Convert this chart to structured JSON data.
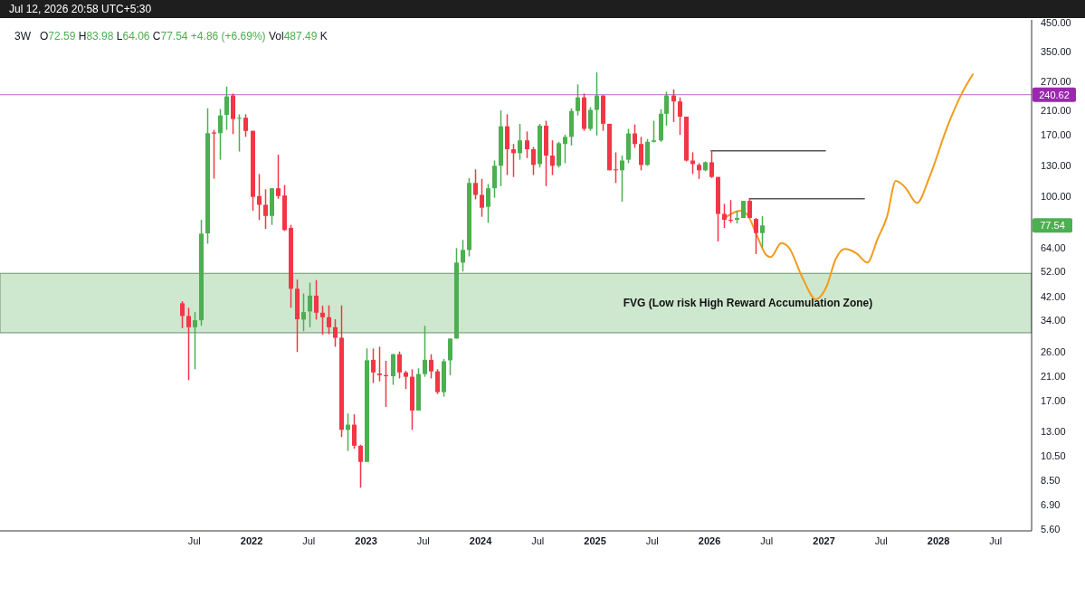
{
  "chart_data": {
    "type": "candlestick",
    "title": "3W",
    "subtitle": "O72.59 H83.98 L64.06 C77.54 +4.86 (+6.69%) Vol487.49 K",
    "log": "y",
    "xlim": [
      2019.802,
      2028.814
    ],
    "ylim": [
      5.5,
      460
    ],
    "xticks": [
      {
        "value": 2021.5,
        "label": "Jul"
      },
      2022,
      {
        "value": 2022.5,
        "label": "Jul"
      },
      2023,
      {
        "value": 2023.5,
        "label": "Jul"
      },
      2024,
      {
        "value": 2024.5,
        "label": "Jul"
      },
      2025,
      {
        "value": 2025.5,
        "label": "Jul"
      },
      2026,
      {
        "value": 2026.5,
        "label": "Jul"
      },
      2027,
      {
        "value": 2027.5,
        "label": "Jul"
      },
      2028,
      {
        "value": 2028.5,
        "label": "Jul"
      }
    ],
    "yticks": [
      {
        "value": 5.6,
        "label": "5.60"
      },
      {
        "value": 6.9,
        "label": "6.90"
      },
      {
        "value": 8.5,
        "label": "8.50"
      },
      {
        "value": 10.5,
        "label": "10.50"
      },
      {
        "value": 13,
        "label": "13.00"
      },
      {
        "value": 17,
        "label": "17.00"
      },
      {
        "value": 21,
        "label": "21.00"
      },
      {
        "value": 26,
        "label": "26.00"
      },
      {
        "value": 34,
        "label": "34.00"
      },
      {
        "value": 42,
        "label": "42.00"
      },
      {
        "value": 52,
        "label": "52.00"
      },
      {
        "value": 64,
        "label": "64.00"
      },
      {
        "value": 100,
        "label": "100.00"
      },
      {
        "value": 130,
        "label": "130.00"
      },
      {
        "value": 170,
        "label": "170.00"
      },
      {
        "value": 210,
        "label": "210.00"
      },
      {
        "value": 270,
        "label": "270.00"
      },
      {
        "value": 350,
        "label": "350.00"
      },
      {
        "value": 450,
        "label": "450.00"
      }
    ],
    "x": [
      2021.391,
      2021.447,
      2021.502,
      2021.558,
      2021.614,
      2021.67,
      2021.725,
      2021.781,
      2021.837,
      2021.892,
      2021.948,
      2022.004,
      2022.059,
      2022.115,
      2022.171,
      2022.227,
      2022.282,
      2022.338,
      2022.394,
      2022.449,
      2022.505,
      2022.561,
      2022.616,
      2022.672,
      2022.728,
      2022.784,
      2022.839,
      2022.895,
      2022.951,
      2023.006,
      2023.062,
      2023.118,
      2023.173,
      2023.229,
      2023.285,
      2023.341,
      2023.396,
      2023.452,
      2023.508,
      2023.563,
      2023.619,
      2023.675,
      2023.73,
      2023.786,
      2023.842,
      2023.898,
      2023.953,
      2024.009,
      2024.065,
      2024.12,
      2024.176,
      2024.232,
      2024.287,
      2024.343,
      2024.399,
      2024.455,
      2024.51,
      2024.566,
      2024.622,
      2024.677,
      2024.733,
      2024.789,
      2024.844,
      2024.9,
      2024.956,
      2025.012,
      2025.067,
      2025.123,
      2025.179,
      2025.234,
      2025.29,
      2025.346,
      2025.401,
      2025.457,
      2025.513,
      2025.569,
      2025.624,
      2025.68,
      2025.736,
      2025.791,
      2025.847,
      2025.903,
      2025.958,
      2026.014,
      2026.07,
      2026.126,
      2026.181,
      2026.237,
      2026.293,
      2026.348,
      2026.404,
      2026.46
    ],
    "ohlc": [
      [
        39.5,
        40.2,
        31.8,
        35.4
      ],
      [
        35.4,
        38.0,
        20.3,
        32.1
      ],
      [
        32.1,
        36.6,
        22.3,
        34.1
      ],
      [
        34.1,
        81.4,
        32.5,
        72.2
      ],
      [
        72.4,
        214,
        66.2,
        172.4
      ],
      [
        173.5,
        177.5,
        116.3,
        171.8
      ],
      [
        172.4,
        212.5,
        137,
        201
      ],
      [
        202,
        258,
        177.5,
        237
      ],
      [
        239,
        243,
        171,
        195
      ],
      [
        196,
        203,
        147,
        197
      ],
      [
        197,
        203,
        167,
        175.8
      ],
      [
        176,
        176,
        88,
        99.3
      ],
      [
        100,
        121,
        81.2,
        92.7
      ],
      [
        92.7,
        106,
        75.3,
        84.2
      ],
      [
        84.2,
        107,
        77.9,
        107
      ],
      [
        107,
        143,
        97.7,
        100
      ],
      [
        100.5,
        110,
        73.9,
        74.5
      ],
      [
        75.9,
        77.9,
        38.0,
        44.8
      ],
      [
        44.8,
        48.5,
        25.9,
        34.4
      ],
      [
        34.3,
        43.0,
        31.0,
        36.6
      ],
      [
        36.8,
        47.2,
        32.1,
        42.2
      ],
      [
        42.2,
        48.3,
        34.3,
        36.4
      ],
      [
        36.4,
        38.7,
        30.1,
        35.0
      ],
      [
        35.0,
        38.8,
        30.2,
        32.1
      ],
      [
        32.1,
        34.4,
        27.1,
        29.3
      ],
      [
        29.3,
        38.8,
        12.4,
        13.2
      ],
      [
        13.2,
        15.2,
        11.0,
        13.8
      ],
      [
        13.8,
        15.1,
        11.2,
        11.5
      ],
      [
        11.5,
        11.6,
        8.0,
        10.0
      ],
      [
        10.0,
        26.7,
        10.0,
        24.1
      ],
      [
        24.2,
        26.7,
        19.8,
        21.7
      ],
      [
        21.5,
        27.1,
        20.1,
        21.2
      ],
      [
        21.2,
        24.0,
        16.1,
        21.0
      ],
      [
        21.0,
        25.5,
        19.5,
        25.4
      ],
      [
        25.4,
        26.0,
        20.6,
        21.7
      ],
      [
        21.7,
        22.0,
        18.8,
        20.9
      ],
      [
        20.9,
        22.3,
        13.2,
        15.6
      ],
      [
        15.6,
        22.5,
        15.6,
        21.4
      ],
      [
        21.4,
        32.5,
        20.9,
        24.2
      ],
      [
        24.2,
        25.4,
        20.6,
        21.9
      ],
      [
        21.9,
        22.3,
        18.0,
        18.3
      ],
      [
        18.3,
        24.4,
        17.6,
        23.9
      ],
      [
        24.1,
        29.1,
        21.2,
        29.1
      ],
      [
        29.1,
        63.7,
        29.1,
        56.2
      ],
      [
        56.2,
        68.4,
        52.0,
        62.7
      ],
      [
        62.7,
        117,
        59.3,
        112
      ],
      [
        112,
        126,
        97.2,
        101
      ],
      [
        101,
        116,
        83.6,
        90.4
      ],
      [
        91.1,
        111,
        79.3,
        107
      ],
      [
        107,
        136,
        98.5,
        130
      ],
      [
        130,
        210,
        109,
        183
      ],
      [
        183,
        203,
        120,
        150
      ],
      [
        150,
        157,
        118,
        145
      ],
      [
        145,
        187,
        137,
        162
      ],
      [
        162,
        175,
        139,
        150
      ],
      [
        150,
        153,
        120,
        131
      ],
      [
        132,
        187,
        128,
        184
      ],
      [
        184,
        192,
        109,
        142
      ],
      [
        142,
        162,
        120,
        130
      ],
      [
        130,
        160,
        128,
        158
      ],
      [
        157,
        170,
        133,
        167
      ],
      [
        167,
        214,
        155,
        209
      ],
      [
        209,
        263,
        201,
        235
      ],
      [
        235,
        243,
        176,
        179
      ],
      [
        179,
        216,
        176,
        211
      ],
      [
        211,
        292,
        169,
        239
      ],
      [
        239,
        239,
        176,
        187
      ],
      [
        187,
        187,
        125,
        125
      ],
      [
        126,
        146,
        112,
        125
      ],
      [
        125,
        142,
        95.2,
        136
      ],
      [
        137,
        179,
        133,
        172
      ],
      [
        172,
        186,
        152,
        157
      ],
      [
        157,
        167,
        125,
        131
      ],
      [
        131,
        164,
        130,
        160
      ],
      [
        160,
        192,
        159,
        162
      ],
      [
        162,
        212,
        160,
        204
      ],
      [
        204,
        247,
        184,
        239
      ],
      [
        239,
        252,
        190,
        227
      ],
      [
        227,
        235,
        170,
        199
      ],
      [
        199,
        199,
        135,
        136
      ],
      [
        136,
        146,
        121,
        132
      ],
      [
        131,
        133,
        116,
        125
      ],
      [
        125,
        135,
        124,
        134
      ],
      [
        134,
        148,
        117,
        118
      ],
      [
        118,
        118,
        67.5,
        85.7
      ],
      [
        85.7,
        93.5,
        75.9,
        81.4
      ],
      [
        81.4,
        96.6,
        79.3,
        81.0
      ],
      [
        81.4,
        88.0,
        78.9,
        82.7
      ],
      [
        82.7,
        95.9,
        82.7,
        95.9
      ],
      [
        95.9,
        97.7,
        82.7,
        82.7
      ],
      [
        82.0,
        82.7,
        60.5,
        72.6
      ],
      [
        72.59,
        83.98,
        64.06,
        77.54
      ]
    ],
    "series": [
      {
        "type": "line",
        "color": "#f29b1d",
        "x": [
          2026.14,
          2026.271,
          2026.338,
          2026.403,
          2026.496,
          2026.535,
          2026.627,
          2026.693,
          2026.812,
          2026.93,
          2027.022,
          2027.101,
          2027.18,
          2027.286,
          2027.378,
          2027.47,
          2027.549,
          2027.628,
          2027.708,
          2027.813,
          2027.919,
          2028.077,
          2028.208,
          2028.3
        ],
        "values": [
          83.1,
          88.0,
          84.2,
          73.0,
          60.0,
          58.9,
          66.6,
          64.1,
          49.3,
          40.9,
          45.6,
          57.7,
          63.2,
          60.8,
          56.2,
          69.3,
          83.1,
          114,
          108,
          94.2,
          117,
          182,
          245,
          287
        ]
      },
      {
        "type": "line",
        "color": "#555555",
        "x": [
          2026.014,
          2027.012
        ],
        "values": [
          148,
          148
        ]
      },
      {
        "type": "line",
        "color": "#555555",
        "x": [
          2026.348,
          2027.352
        ],
        "values": [
          97.7,
          97.7
        ]
      }
    ],
    "ref_lines": [
      {
        "axis": "y",
        "value": 240.62,
        "label": "240.62",
        "color": "#9c27b0"
      }
    ],
    "bands": [
      {
        "axis": "y",
        "from": 30.6,
        "to": 51.2,
        "label": "FVG (Low risk High Reward Accumulation Zone)",
        "color": "#a5d6a7"
      }
    ],
    "annotations": [
      "Jul 12, 2026 20:58 UTC+5:30",
      "77.54"
    ]
  }
}
